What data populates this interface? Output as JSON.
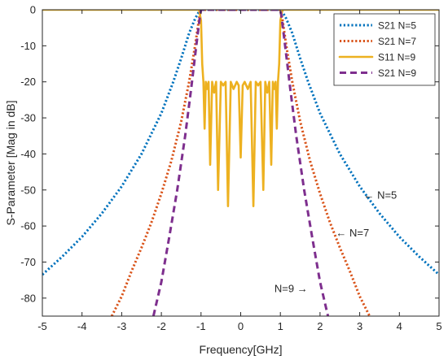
{
  "chart_data": {
    "type": "line",
    "title": "",
    "xlabel": "Frequency[GHz]",
    "ylabel": "S-Parameter [Mag in dB]",
    "xlim": [
      -5,
      5
    ],
    "ylim": [
      -85,
      0
    ],
    "xticks": [
      "-5",
      "-4",
      "-3",
      "-2",
      "-1",
      "0",
      "1",
      "2",
      "3",
      "4",
      "5"
    ],
    "yticks": [
      "0",
      "-10",
      "-20",
      "-30",
      "-40",
      "-50",
      "-60",
      "-70",
      "-80"
    ],
    "grid": false,
    "legend_position": "top-right",
    "series": [
      {
        "name": "S21 N=5",
        "color": "#0072BD",
        "style": "dotted",
        "x": [
          -5,
          -4.5,
          -4,
          -3.5,
          -3,
          -2.5,
          -2,
          -1.7,
          -1.5,
          -1.3,
          -1.15,
          -1.05,
          -1,
          0,
          1,
          1.05,
          1.15,
          1.3,
          1.5,
          1.7,
          2,
          2.5,
          3,
          3.5,
          4,
          4.5,
          5
        ],
        "values": [
          -73.5,
          -68.5,
          -63,
          -56.5,
          -49,
          -40,
          -28.7,
          -20,
          -13.5,
          -6.5,
          -2.5,
          -0.5,
          0,
          0,
          0,
          -0.5,
          -2.5,
          -6.5,
          -13.5,
          -20,
          -28.7,
          -40,
          -49,
          -56.5,
          -63,
          -68.5,
          -73.5
        ]
      },
      {
        "name": "S21 N=7",
        "color": "#D95319",
        "style": "dotted",
        "x": [
          -3.25,
          -3,
          -2.75,
          -2.5,
          -2.25,
          -2,
          -1.75,
          -1.5,
          -1.3,
          -1.15,
          -1.05,
          -1,
          0,
          1,
          1.05,
          1.15,
          1.3,
          1.5,
          1.75,
          2,
          2.25,
          2.5,
          2.75,
          3,
          3.25
        ],
        "values": [
          -85,
          -79.5,
          -72.5,
          -66,
          -59,
          -51,
          -42,
          -31,
          -20,
          -10,
          -2.5,
          0,
          0,
          0,
          -2.5,
          -10,
          -20,
          -31,
          -42,
          -51,
          -59,
          -66,
          -72.5,
          -79.5,
          -85
        ]
      },
      {
        "name": "S11 N=9",
        "color": "#EDB120",
        "style": "solid",
        "x": [
          -5,
          -1.05,
          -1.0,
          -0.97,
          -0.94,
          -0.91,
          -0.88,
          -0.85,
          -0.81,
          -0.77,
          -0.72,
          -0.67,
          -0.62,
          -0.57,
          -0.5,
          -0.44,
          -0.38,
          -0.32,
          -0.25,
          -0.18,
          -0.1,
          -0.05,
          0,
          0.05,
          0.1,
          0.18,
          0.25,
          0.32,
          0.38,
          0.44,
          0.5,
          0.57,
          0.62,
          0.67,
          0.72,
          0.77,
          0.81,
          0.85,
          0.88,
          0.91,
          0.94,
          0.97,
          1.0,
          1.05,
          5
        ],
        "values": [
          0,
          0,
          -3,
          -15,
          -20,
          -33,
          -20,
          -22,
          -20,
          -43,
          -20,
          -23,
          -20,
          -50,
          -20,
          -21,
          -20,
          -54.5,
          -20,
          -22,
          -20,
          -21,
          -41,
          -21,
          -20,
          -22,
          -20,
          -54.5,
          -20,
          -21,
          -20,
          -50,
          -20,
          -23,
          -20,
          -43,
          -20,
          -22,
          -20,
          -33,
          -20,
          -15,
          -3,
          0,
          0
        ]
      },
      {
        "name": "S21 N=9",
        "color": "#7E2F8E",
        "style": "dashed",
        "x": [
          -2.2,
          -2.0,
          -1.8,
          -1.6,
          -1.4,
          -1.25,
          -1.12,
          -1.03,
          -1,
          0,
          1,
          1.03,
          1.12,
          1.25,
          1.4,
          1.6,
          1.8,
          2.0,
          2.2
        ],
        "values": [
          -85,
          -75.5,
          -63,
          -50,
          -35,
          -22,
          -10,
          -2,
          0,
          0,
          0,
          -2,
          -10,
          -22,
          -35,
          -50,
          -63,
          -75.5,
          -85
        ]
      }
    ],
    "annotations": [
      {
        "text": "← N=5",
        "x": 3.1,
        "y": -51.5
      },
      {
        "text": "← N=7",
        "x": 2.4,
        "y": -62
      },
      {
        "text": "N=9 →",
        "x": 0.85,
        "y": -77.5
      }
    ]
  }
}
